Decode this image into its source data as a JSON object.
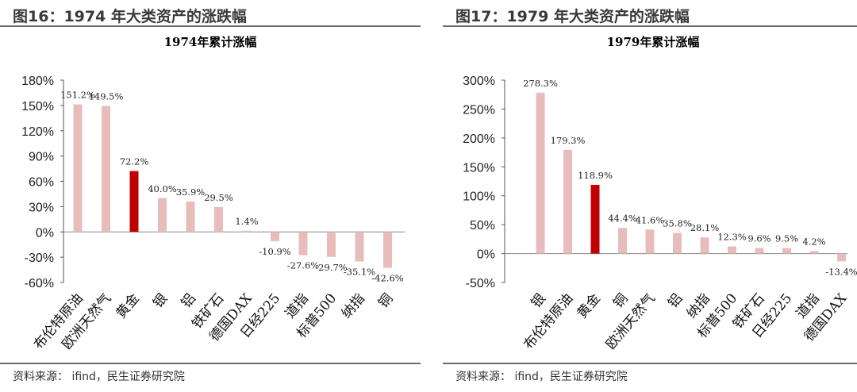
{
  "panels": [
    {
      "figure_title": "图16：1974 年大类资产的涨跌幅",
      "source": "资料来源： ifind，民生证券研究院",
      "chart_data": {
        "type": "bar",
        "title": "1974年累计涨幅",
        "categories": [
          "布伦特原油",
          "欧洲天然气",
          "黄金",
          "银",
          "铝",
          "铁矿石",
          "德国DAX",
          "日经225",
          "道指",
          "标普500",
          "纳指",
          "铜"
        ],
        "values": [
          151.2,
          149.5,
          72.2,
          40.0,
          35.9,
          29.5,
          1.4,
          -10.9,
          -27.6,
          -29.7,
          -35.1,
          -42.6
        ],
        "value_labels": [
          "151.2%",
          "149.5%",
          "72.2%",
          "40.0%",
          "35.9%",
          "29.5%",
          "1.4%",
          "-10.9%",
          "-27.6%",
          "-29.7%",
          "-35.1%",
          "-42.6%"
        ],
        "highlight": "黄金",
        "ylim": [
          -60,
          180
        ],
        "yticks": [
          -60,
          -30,
          0,
          30,
          60,
          90,
          120,
          150,
          180
        ],
        "ytick_labels": [
          "-60%",
          "-30%",
          "0%",
          "30%",
          "60%",
          "90%",
          "120%",
          "150%",
          "180%"
        ],
        "xlabel": "",
        "ylabel": "",
        "grid": false,
        "colors": {
          "bar": "#e9bcbc",
          "highlight": "#c00000"
        }
      }
    },
    {
      "figure_title": "图17：1979 年大类资产的涨跌幅",
      "source": "资料来源： ifind，民生证券研究院",
      "chart_data": {
        "type": "bar",
        "title": "1979年累计涨幅",
        "categories": [
          "银",
          "布伦特原油",
          "黄金",
          "铜",
          "欧洲天然气",
          "铝",
          "纳指",
          "标普500",
          "铁矿石",
          "日经225",
          "道指",
          "德国DAX"
        ],
        "values": [
          278.3,
          179.3,
          118.9,
          44.4,
          41.6,
          35.8,
          28.1,
          12.3,
          9.6,
          9.5,
          4.2,
          -13.4
        ],
        "value_labels": [
          "278.3%",
          "179.3%",
          "118.9%",
          "44.4%",
          "41.6%",
          "35.8%",
          "28.1%",
          "12.3%",
          "9.6%",
          "9.5%",
          "4.2%",
          "-13.4%"
        ],
        "highlight": "黄金",
        "ylim": [
          -50,
          300
        ],
        "yticks": [
          -50,
          0,
          50,
          100,
          150,
          200,
          250,
          300
        ],
        "ytick_labels": [
          "-50%",
          "0%",
          "50%",
          "100%",
          "150%",
          "200%",
          "250%",
          "300%"
        ],
        "xlabel": "",
        "ylabel": "",
        "grid": false,
        "colors": {
          "bar": "#e9bcbc",
          "highlight": "#c00000"
        }
      }
    }
  ]
}
